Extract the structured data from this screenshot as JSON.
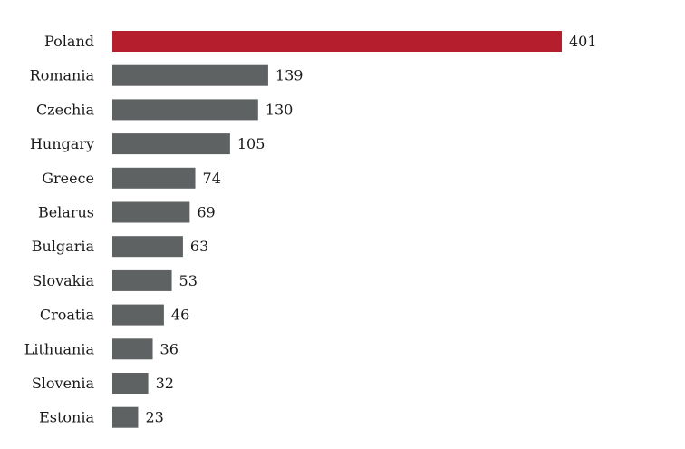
{
  "chart_data": {
    "type": "bar",
    "orientation": "horizontal",
    "categories": [
      "Poland",
      "Romania",
      "Czechia",
      "Hungary",
      "Greece",
      "Belarus",
      "Bulgaria",
      "Slovakia",
      "Croatia",
      "Lithuania",
      "Slovenia",
      "Estonia"
    ],
    "values": [
      401,
      139,
      130,
      105,
      74,
      69,
      63,
      53,
      46,
      36,
      32,
      23
    ],
    "data_labels": [
      "401",
      "139",
      "130",
      "105",
      "74",
      "69",
      "63",
      "53",
      "46",
      "36",
      "32",
      "23"
    ],
    "highlight_category": "Poland",
    "xlim": [
      0,
      401
    ],
    "grid": false,
    "colors": {
      "highlight": "#b51f2d",
      "default": "#5f6263"
    }
  }
}
